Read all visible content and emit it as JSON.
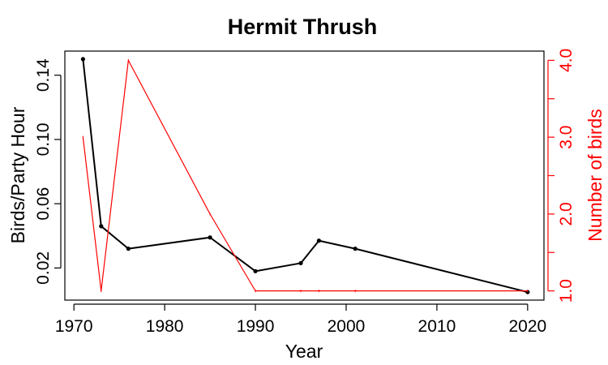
{
  "chart_data": {
    "type": "line",
    "title": "Hermit Thrush",
    "xlabel": "Year",
    "ylabel": "Birds/Party Hour",
    "y2label": "Number of birds",
    "xlim": [
      1969.0,
      2021.8
    ],
    "ylim": [
      0.0,
      0.155
    ],
    "y2lim": [
      0.88,
      4.12
    ],
    "x_ticks": [
      1970,
      1980,
      1990,
      2000,
      2010,
      2020
    ],
    "y_ticks": [
      0.02,
      0.06,
      0.1,
      0.14
    ],
    "y_tick_labels": [
      "0.02",
      "0.06",
      "0.10",
      "0.14"
    ],
    "y2_ticks": [
      1.0,
      2.0,
      3.0,
      4.0
    ],
    "y2_tick_labels": [
      "1.0",
      "2.0",
      "3.0",
      "4.0"
    ],
    "grid": false,
    "series": [
      {
        "axis": "left",
        "color": "#000000",
        "markers": true,
        "x": [
          1971,
          1973,
          1976,
          1985,
          1990,
          1995,
          1997,
          2001,
          2020
        ],
        "values": [
          0.15,
          0.046,
          0.032,
          0.039,
          0.018,
          0.023,
          0.037,
          0.032,
          0.005
        ]
      },
      {
        "axis": "right",
        "color": "#ff0000",
        "markers": false,
        "x": [
          1971,
          1973,
          1976,
          1985,
          1990,
          1995,
          1997,
          2001,
          2020
        ],
        "values": [
          3,
          1,
          4,
          2,
          1,
          1,
          1,
          1,
          1
        ]
      }
    ]
  }
}
